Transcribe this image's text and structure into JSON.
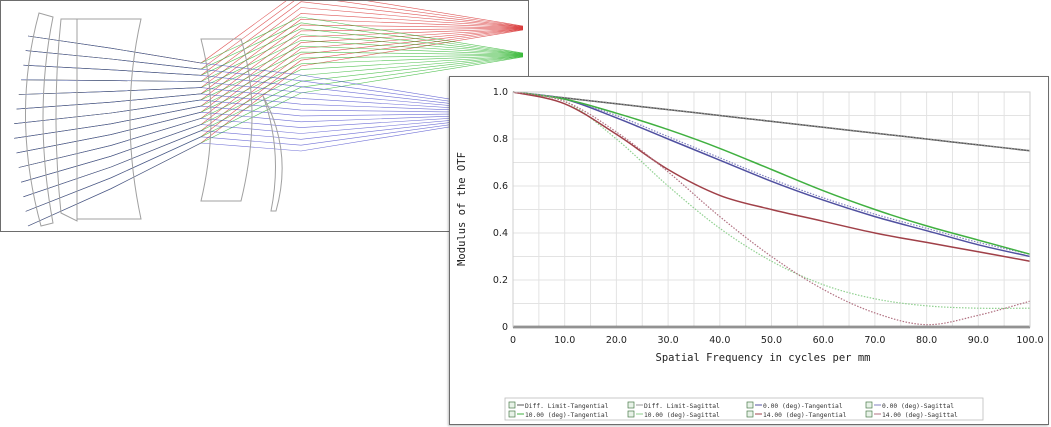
{
  "layout_diagram": {
    "ray_colors": {
      "field_0": "#4040c8",
      "field_10": "#22b022",
      "field_14": "#d42020"
    },
    "element_color": "#a0a0a0"
  },
  "chart_data": {
    "type": "line",
    "title": "",
    "xlabel": "Spatial Frequency in cycles per mm",
    "ylabel": "Modulus of the OTF",
    "xlim": [
      0,
      100
    ],
    "ylim": [
      0,
      1.0
    ],
    "x_ticks": [
      "0",
      "10.0",
      "20.0",
      "30.0",
      "40.0",
      "50.0",
      "60.0",
      "70.0",
      "80.0",
      "90.0",
      "100.0"
    ],
    "y_ticks": [
      "0",
      "0.2",
      "0.4",
      "0.6",
      "0.8",
      "1.0"
    ],
    "grid": true,
    "legend_position": "bottom",
    "series": [
      {
        "name": "Diff. Limit-Tangential",
        "color": "#555555",
        "dash": "solid",
        "x": [
          0,
          10,
          20,
          30,
          40,
          50,
          60,
          70,
          80,
          90,
          100
        ],
        "y": [
          1.0,
          0.975,
          0.95,
          0.925,
          0.9,
          0.875,
          0.85,
          0.825,
          0.8,
          0.775,
          0.75
        ]
      },
      {
        "name": "Diff. Limit-Sagittal",
        "color": "#999999",
        "dash": "dotted",
        "x": [
          0,
          10,
          20,
          30,
          40,
          50,
          60,
          70,
          80,
          90,
          100
        ],
        "y": [
          1.0,
          0.976,
          0.951,
          0.926,
          0.901,
          0.876,
          0.851,
          0.826,
          0.801,
          0.776,
          0.751
        ]
      },
      {
        "name": "0.00 (deg)-Tangential",
        "color": "#5050a0",
        "dash": "solid",
        "x": [
          0,
          10,
          20,
          30,
          40,
          50,
          60,
          70,
          80,
          90,
          100
        ],
        "y": [
          1.0,
          0.97,
          0.89,
          0.8,
          0.71,
          0.62,
          0.54,
          0.47,
          0.41,
          0.35,
          0.3
        ]
      },
      {
        "name": "0.00 (deg)-Sagittal",
        "color": "#8080c0",
        "dash": "dotted",
        "x": [
          0,
          10,
          20,
          30,
          40,
          50,
          60,
          70,
          80,
          90,
          100
        ],
        "y": [
          1.0,
          0.97,
          0.9,
          0.81,
          0.72,
          0.63,
          0.55,
          0.48,
          0.42,
          0.36,
          0.31
        ]
      },
      {
        "name": "10.00 (deg)-Tangential",
        "color": "#40b040",
        "dash": "solid",
        "x": [
          0,
          10,
          20,
          30,
          40,
          50,
          60,
          70,
          80,
          90,
          100
        ],
        "y": [
          1.0,
          0.97,
          0.91,
          0.84,
          0.76,
          0.67,
          0.58,
          0.5,
          0.43,
          0.37,
          0.31
        ]
      },
      {
        "name": "10.00 (deg)-Sagittal",
        "color": "#8fd08f",
        "dash": "dotted",
        "x": [
          0,
          10,
          20,
          30,
          40,
          50,
          60,
          70,
          80,
          90,
          100
        ],
        "y": [
          1.0,
          0.96,
          0.8,
          0.6,
          0.42,
          0.28,
          0.18,
          0.12,
          0.09,
          0.08,
          0.08
        ]
      },
      {
        "name": "14.00 (deg)-Tangential",
        "color": "#a04048",
        "dash": "solid",
        "x": [
          0,
          10,
          20,
          30,
          40,
          50,
          60,
          70,
          80,
          90,
          100
        ],
        "y": [
          1.0,
          0.95,
          0.82,
          0.67,
          0.56,
          0.5,
          0.45,
          0.4,
          0.36,
          0.32,
          0.28
        ]
      },
      {
        "name": "14.00 (deg)-Sagittal",
        "color": "#b07080",
        "dash": "dotted",
        "x": [
          0,
          10,
          20,
          30,
          40,
          50,
          60,
          70,
          80,
          90,
          100
        ],
        "y": [
          1.0,
          0.96,
          0.83,
          0.66,
          0.47,
          0.3,
          0.16,
          0.06,
          0.01,
          0.05,
          0.11
        ]
      }
    ]
  }
}
